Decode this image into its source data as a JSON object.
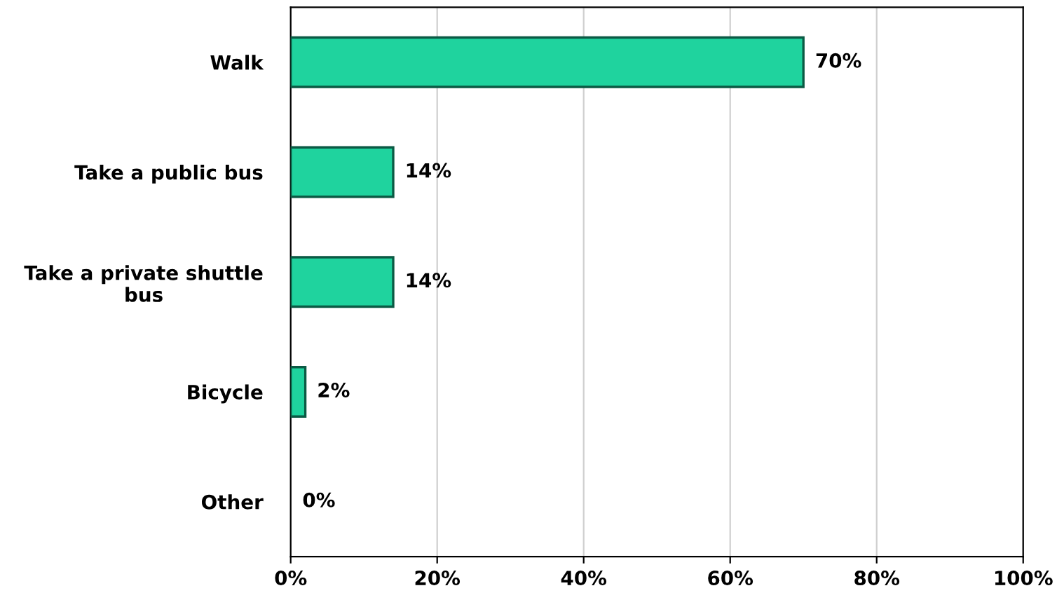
{
  "chart_data": {
    "type": "bar",
    "orientation": "horizontal",
    "categories": [
      "Walk",
      "Take a public bus",
      "Take a private shuttle bus",
      "Bicycle",
      "Other"
    ],
    "values": [
      70,
      14,
      14,
      2,
      0
    ],
    "color": "#1fd39e",
    "value_labels": [
      "70%",
      "14%",
      "14%",
      "2%",
      "0%"
    ],
    "xlim": [
      0,
      100
    ],
    "xticks": [
      {
        "value": 0,
        "label": "0%"
      },
      {
        "value": 20,
        "label": "20%"
      },
      {
        "value": 40,
        "label": "40%"
      },
      {
        "value": 60,
        "label": "60%"
      },
      {
        "value": 80,
        "label": "80%"
      },
      {
        "value": 100,
        "label": "100%"
      }
    ],
    "grid": "x",
    "legend": false
  }
}
